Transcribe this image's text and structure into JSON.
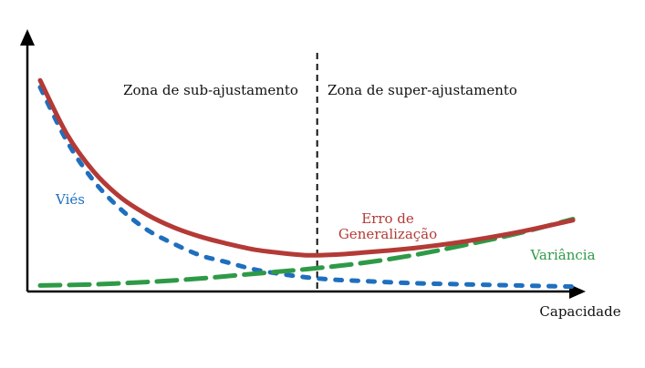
{
  "chart_data": {
    "type": "line",
    "xlabel": "Capacidade",
    "ylabel": "",
    "xlim": [
      0,
      10
    ],
    "ylim": [
      0,
      10
    ],
    "axis_ticks": false,
    "divider_x": 5.2,
    "zones": {
      "left": "Zona de sub-ajustamento",
      "right": "Zona de super-ajustamento"
    },
    "series": [
      {
        "name": "Viés",
        "color": "#1f6fbf",
        "style": "dotted",
        "x": [
          0.0,
          0.5,
          1.0,
          1.5,
          2.0,
          2.5,
          3.0,
          3.5,
          4.0,
          4.5,
          5.0,
          5.5,
          6.0,
          7.0,
          8.0,
          9.0,
          10.0
        ],
        "y": [
          8.6,
          6.3,
          4.6,
          3.4,
          2.5,
          1.9,
          1.4,
          1.1,
          0.8,
          0.6,
          0.45,
          0.35,
          0.3,
          0.2,
          0.15,
          0.1,
          0.05
        ]
      },
      {
        "name": "Variância",
        "color": "#2e9a47",
        "style": "dashed",
        "x": [
          0.0,
          1.0,
          2.0,
          3.0,
          4.0,
          5.0,
          6.0,
          7.0,
          8.0,
          9.0,
          10.0
        ],
        "y": [
          0.1,
          0.15,
          0.25,
          0.4,
          0.6,
          0.8,
          1.05,
          1.4,
          1.85,
          2.35,
          2.95
        ]
      },
      {
        "name": "Erro de Generalização",
        "color": "#b33a36",
        "style": "solid",
        "x": [
          0.0,
          0.5,
          1.0,
          1.5,
          2.0,
          2.5,
          3.0,
          3.5,
          4.0,
          4.5,
          5.0,
          5.5,
          6.0,
          7.0,
          8.0,
          9.0,
          10.0
        ],
        "y": [
          8.9,
          6.6,
          5.0,
          3.9,
          3.15,
          2.6,
          2.2,
          1.9,
          1.65,
          1.5,
          1.4,
          1.42,
          1.5,
          1.7,
          2.0,
          2.4,
          2.9
        ]
      }
    ],
    "labels": {
      "bias": "Viés",
      "variance": "Variância",
      "error_line1": "Erro de",
      "error_line2": "Generalização"
    }
  }
}
